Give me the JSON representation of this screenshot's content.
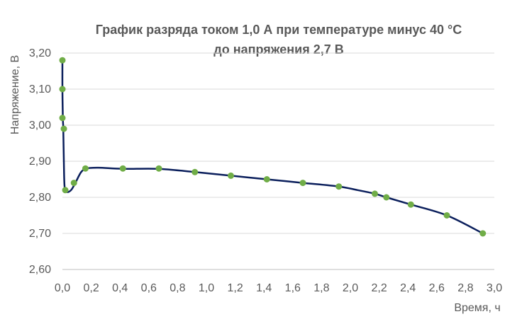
{
  "chart_data": {
    "type": "scatter",
    "title_lines": [
      "График разряда током 1,0 А при температуре минус 40 °С",
      "до напряжения 2,7 В"
    ],
    "xlabel": "Время, ч",
    "ylabel": "Напряжение, В",
    "xlim": [
      0,
      3.0
    ],
    "ylim": [
      2.6,
      3.2
    ],
    "x_ticks": [
      "0,0",
      "0,2",
      "0,4",
      "0,6",
      "0,8",
      "1,0",
      "1,2",
      "1,4",
      "1,6",
      "1,8",
      "2,0",
      "2,2",
      "2,4",
      "2,6",
      "2,8",
      "3,0"
    ],
    "y_ticks": [
      "2,60",
      "2,70",
      "2,80",
      "2,90",
      "3,00",
      "3,10",
      "3,20"
    ],
    "grid": true,
    "line_color": "#0b1f5c",
    "marker_color": "#70ad47",
    "curve": {
      "x": [
        0.0,
        0.0,
        0.003,
        0.006,
        0.01,
        0.015,
        0.03,
        0.06,
        0.09,
        0.13,
        0.17,
        0.25,
        0.42,
        0.67,
        0.92,
        1.17,
        1.42,
        1.67,
        1.92,
        2.05,
        2.17,
        2.25,
        2.42,
        2.67,
        2.92
      ],
      "y": [
        3.18,
        3.1,
        3.02,
        2.99,
        2.9,
        2.83,
        2.815,
        2.82,
        2.84,
        2.87,
        2.88,
        2.882,
        2.879,
        2.879,
        2.87,
        2.86,
        2.85,
        2.84,
        2.83,
        2.82,
        2.81,
        2.8,
        2.78,
        2.75,
        2.7
      ]
    },
    "markers": {
      "x": [
        0.0,
        0.0,
        0.0,
        0.01,
        0.02,
        0.08,
        0.16,
        0.42,
        0.67,
        0.92,
        1.17,
        1.42,
        1.67,
        1.92,
        2.17,
        2.25,
        2.42,
        2.67,
        2.92
      ],
      "y": [
        3.18,
        3.1,
        3.02,
        2.99,
        2.82,
        2.84,
        2.88,
        2.88,
        2.88,
        2.87,
        2.86,
        2.85,
        2.84,
        2.83,
        2.81,
        2.8,
        2.78,
        2.75,
        2.7
      ]
    }
  }
}
